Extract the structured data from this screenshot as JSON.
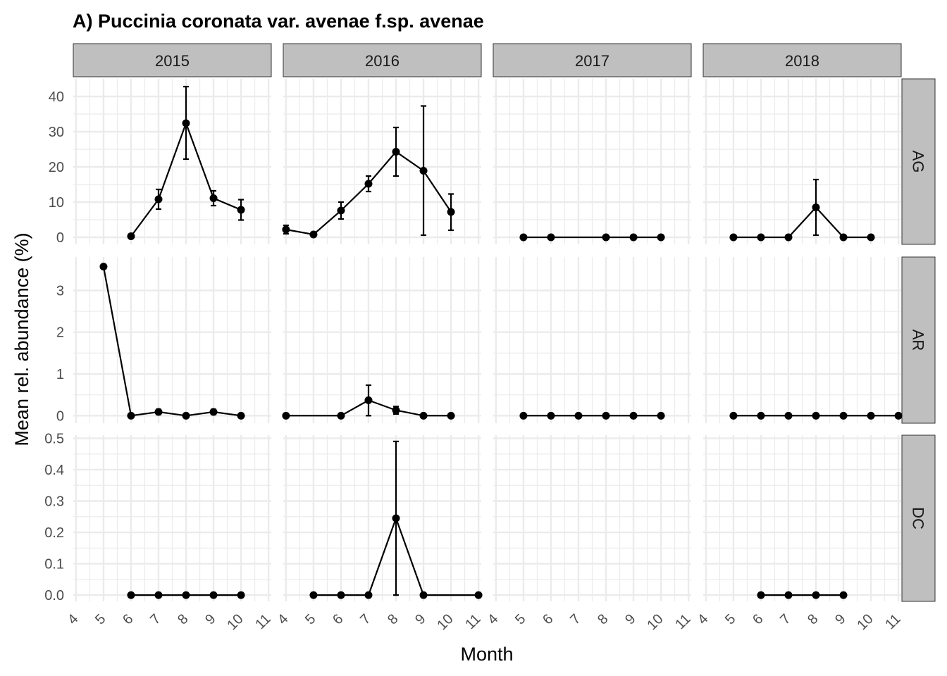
{
  "chart_data": {
    "type": "line",
    "title": "A) Puccinia coronata var. avenae f.sp. avenae",
    "xlabel": "Month",
    "ylabel": "Mean rel. abundance (%)",
    "x_ticks": [
      "4",
      "5",
      "6",
      "7",
      "8",
      "9",
      "10",
      "11"
    ],
    "xlim": [
      3.9,
      11.1
    ],
    "grid": true,
    "columns": [
      "2015",
      "2016",
      "2017",
      "2018"
    ],
    "rows": [
      {
        "label": "AG",
        "ylim": [
          -2,
          45
        ],
        "y_ticks": [
          0,
          10,
          20,
          30,
          40
        ],
        "y_tick_labels": [
          "0",
          "10",
          "20",
          "30",
          "40"
        ]
      },
      {
        "label": "AR",
        "ylim": [
          -0.18,
          3.8
        ],
        "y_ticks": [
          0,
          1,
          2,
          3
        ],
        "y_tick_labels": [
          "0",
          "1",
          "2",
          "3"
        ]
      },
      {
        "label": "DC",
        "ylim": [
          -0.02,
          0.51
        ],
        "y_ticks": [
          0,
          0.1,
          0.2,
          0.3,
          0.4,
          0.5
        ],
        "y_tick_labels": [
          "0.0",
          "0.1",
          "0.2",
          "0.3",
          "0.4",
          "0.5"
        ]
      }
    ],
    "panels": [
      {
        "column": "2015",
        "row": "AG",
        "points": [
          {
            "x": 6,
            "y": 0.3,
            "ymin": 0.3,
            "ymax": 0.3
          },
          {
            "x": 7,
            "y": 10.8,
            "ymin": 8.0,
            "ymax": 13.6
          },
          {
            "x": 8,
            "y": 32.4,
            "ymin": 22.2,
            "ymax": 42.8
          },
          {
            "x": 9,
            "y": 11.1,
            "ymin": 9.0,
            "ymax": 13.2
          },
          {
            "x": 10,
            "y": 7.8,
            "ymin": 4.9,
            "ymax": 10.7
          }
        ]
      },
      {
        "column": "2016",
        "row": "AG",
        "points": [
          {
            "x": 4,
            "y": 2.2,
            "ymin": 1.0,
            "ymax": 3.4
          },
          {
            "x": 5,
            "y": 0.8,
            "ymin": 0.8,
            "ymax": 0.8
          },
          {
            "x": 6,
            "y": 7.6,
            "ymin": 5.2,
            "ymax": 10.0
          },
          {
            "x": 7,
            "y": 15.2,
            "ymin": 13.0,
            "ymax": 17.4
          },
          {
            "x": 8,
            "y": 24.3,
            "ymin": 17.4,
            "ymax": 31.2
          },
          {
            "x": 9,
            "y": 18.9,
            "ymin": 0.6,
            "ymax": 37.3
          },
          {
            "x": 10,
            "y": 7.2,
            "ymin": 2.0,
            "ymax": 12.3
          }
        ]
      },
      {
        "column": "2017",
        "row": "AG",
        "points": [
          {
            "x": 5,
            "y": 0
          },
          {
            "x": 6,
            "y": 0
          },
          {
            "x": 8,
            "y": 0
          },
          {
            "x": 9,
            "y": 0
          },
          {
            "x": 10,
            "y": 0
          }
        ]
      },
      {
        "column": "2018",
        "row": "AG",
        "points": [
          {
            "x": 5,
            "y": 0
          },
          {
            "x": 6,
            "y": 0
          },
          {
            "x": 7,
            "y": 0
          },
          {
            "x": 8,
            "y": 8.5,
            "ymin": 0.6,
            "ymax": 16.4
          },
          {
            "x": 9,
            "y": 0
          },
          {
            "x": 10,
            "y": 0
          }
        ]
      },
      {
        "column": "2015",
        "row": "AR",
        "points": [
          {
            "x": 5,
            "y": 3.57
          },
          {
            "x": 6,
            "y": 0
          },
          {
            "x": 7,
            "y": 0.09,
            "ymin": 0.03,
            "ymax": 0.15
          },
          {
            "x": 8,
            "y": 0
          },
          {
            "x": 9,
            "y": 0.09,
            "ymin": 0.03,
            "ymax": 0.15
          },
          {
            "x": 10,
            "y": 0
          }
        ]
      },
      {
        "column": "2016",
        "row": "AR",
        "points": [
          {
            "x": 4,
            "y": 0
          },
          {
            "x": 6,
            "y": 0
          },
          {
            "x": 7,
            "y": 0.37,
            "ymin": 0.0,
            "ymax": 0.73
          },
          {
            "x": 8,
            "y": 0.13,
            "ymin": 0.04,
            "ymax": 0.22
          },
          {
            "x": 9,
            "y": 0
          },
          {
            "x": 10,
            "y": 0
          }
        ]
      },
      {
        "column": "2017",
        "row": "AR",
        "points": [
          {
            "x": 5,
            "y": 0
          },
          {
            "x": 6,
            "y": 0
          },
          {
            "x": 7,
            "y": 0
          },
          {
            "x": 8,
            "y": 0
          },
          {
            "x": 9,
            "y": 0
          },
          {
            "x": 10,
            "y": 0
          }
        ]
      },
      {
        "column": "2018",
        "row": "AR",
        "points": [
          {
            "x": 5,
            "y": 0
          },
          {
            "x": 6,
            "y": 0
          },
          {
            "x": 7,
            "y": 0
          },
          {
            "x": 8,
            "y": 0
          },
          {
            "x": 9,
            "y": 0
          },
          {
            "x": 10,
            "y": 0
          },
          {
            "x": 11,
            "y": 0
          }
        ]
      },
      {
        "column": "2015",
        "row": "DC",
        "points": [
          {
            "x": 6,
            "y": 0
          },
          {
            "x": 7,
            "y": 0
          },
          {
            "x": 8,
            "y": 0
          },
          {
            "x": 9,
            "y": 0
          },
          {
            "x": 10,
            "y": 0
          }
        ]
      },
      {
        "column": "2016",
        "row": "DC",
        "points": [
          {
            "x": 5,
            "y": 0
          },
          {
            "x": 6,
            "y": 0
          },
          {
            "x": 7,
            "y": 0
          },
          {
            "x": 8,
            "y": 0.245,
            "ymin": 0.0,
            "ymax": 0.49
          },
          {
            "x": 9,
            "y": 0
          },
          {
            "x": 11,
            "y": 0
          }
        ]
      },
      {
        "column": "2017",
        "row": "DC",
        "points": []
      },
      {
        "column": "2018",
        "row": "DC",
        "points": [
          {
            "x": 6,
            "y": 0
          },
          {
            "x": 7,
            "y": 0
          },
          {
            "x": 8,
            "y": 0
          },
          {
            "x": 9,
            "y": 0
          }
        ]
      }
    ],
    "colors": {
      "line": "#000000",
      "point": "#000000",
      "strip_fill": "#bfbfbf",
      "grid": "#ebebeb",
      "tick_text": "#4d4d4d"
    }
  }
}
